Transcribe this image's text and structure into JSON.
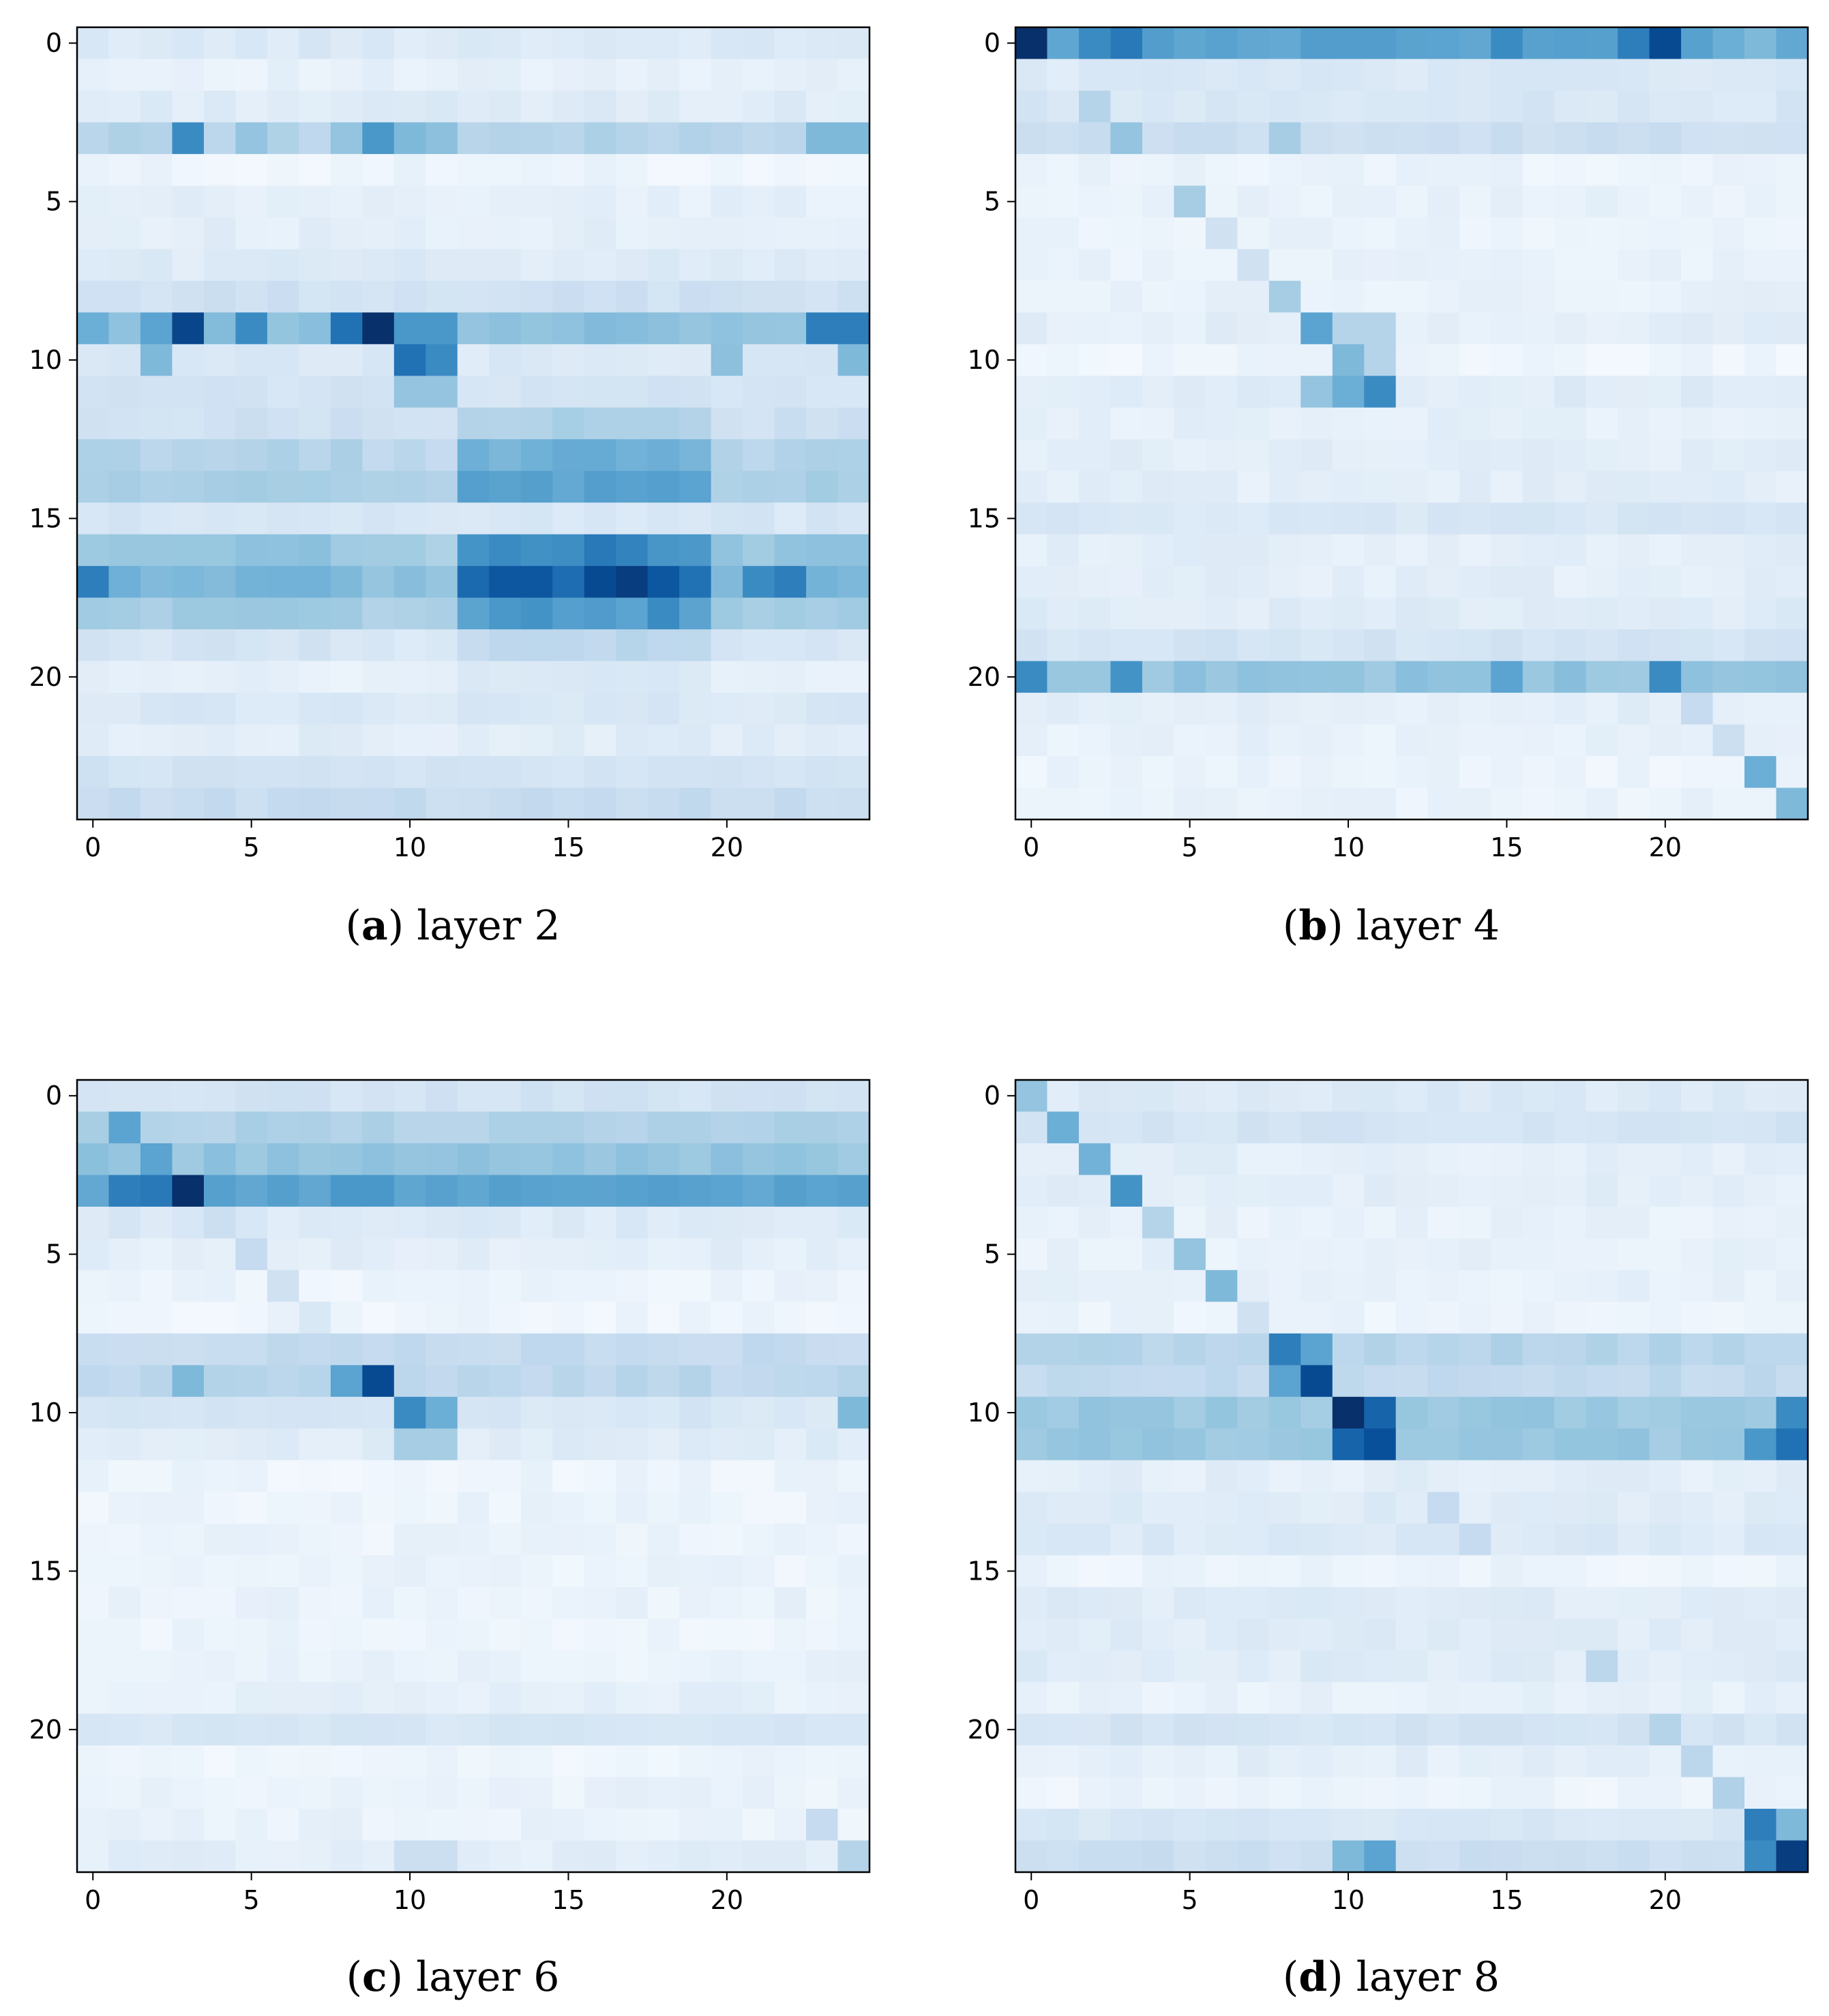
{
  "colormap": {
    "name": "Blues",
    "light": "#f7fbff",
    "dark": "#08306b"
  },
  "chart_data": [
    {
      "type": "heatmap",
      "caption": {
        "open": "(",
        "letter": "a",
        "close": ")",
        "text": " layer 2"
      },
      "xticks": [
        "0",
        "5",
        "10",
        "15",
        "20"
      ],
      "yticks": [
        "0",
        "5",
        "10",
        "15",
        "20"
      ],
      "rows": 25,
      "cols": 25,
      "row_base": [
        0.14,
        0.08,
        0.12,
        0.3,
        0.05,
        0.09,
        0.1,
        0.13,
        0.2,
        0.42,
        0.14,
        0.18,
        0.24,
        0.36,
        0.4,
        0.16,
        0.46,
        0.55,
        0.42,
        0.2,
        0.1,
        0.15,
        0.11,
        0.18,
        0.24
      ],
      "row_flags": [
        "c",
        "x",
        "x",
        "x",
        "c",
        "c",
        "c",
        "c",
        "x",
        "x",
        "x",
        "x",
        "b",
        "b",
        "b",
        "c",
        "b",
        "b",
        "b",
        "b",
        "b",
        "c",
        "c",
        "c",
        "x"
      ],
      "overrides": [
        [
          3,
          3,
          0.65
        ],
        [
          3,
          9,
          0.6
        ],
        [
          3,
          5,
          0.4
        ],
        [
          3,
          8,
          0.4
        ],
        [
          3,
          10,
          0.45
        ],
        [
          3,
          11,
          0.42
        ],
        [
          3,
          23,
          0.45
        ],
        [
          3,
          24,
          0.45
        ],
        [
          9,
          3,
          0.92
        ],
        [
          9,
          9,
          1.0
        ],
        [
          9,
          8,
          0.75
        ],
        [
          9,
          5,
          0.65
        ],
        [
          9,
          2,
          0.55
        ],
        [
          9,
          0,
          0.5
        ],
        [
          9,
          10,
          0.6
        ],
        [
          9,
          11,
          0.6
        ],
        [
          9,
          23,
          0.7
        ],
        [
          9,
          24,
          0.7
        ],
        [
          10,
          10,
          0.75
        ],
        [
          10,
          11,
          0.65
        ],
        [
          10,
          2,
          0.45
        ],
        [
          10,
          20,
          0.42
        ],
        [
          10,
          24,
          0.45
        ],
        [
          11,
          10,
          0.4
        ],
        [
          11,
          11,
          0.4
        ],
        [
          16,
          13,
          0.65
        ],
        [
          16,
          16,
          0.72
        ],
        [
          16,
          17,
          0.68
        ],
        [
          17,
          0,
          0.7
        ],
        [
          17,
          12,
          0.78
        ],
        [
          17,
          13,
          0.85
        ],
        [
          17,
          14,
          0.85
        ],
        [
          17,
          16,
          0.9
        ],
        [
          17,
          17,
          0.95
        ],
        [
          17,
          18,
          0.85
        ],
        [
          17,
          19,
          0.75
        ],
        [
          17,
          21,
          0.65
        ],
        [
          17,
          22,
          0.7
        ],
        [
          18,
          13,
          0.6
        ],
        [
          18,
          14,
          0.62
        ],
        [
          18,
          18,
          0.65
        ]
      ]
    },
    {
      "type": "heatmap",
      "caption": {
        "open": "(",
        "letter": "b",
        "close": ")",
        "text": " layer 4"
      },
      "xticks": [
        "0",
        "5",
        "10",
        "15",
        "20"
      ],
      "yticks": [
        "0",
        "5",
        "10",
        "15",
        "20"
      ],
      "rows": 25,
      "cols": 25,
      "row_base": [
        0.55,
        0.14,
        0.16,
        0.22,
        0.06,
        0.08,
        0.07,
        0.07,
        0.08,
        0.1,
        0.05,
        0.12,
        0.09,
        0.1,
        0.1,
        0.16,
        0.1,
        0.1,
        0.12,
        0.18,
        0.4,
        0.1,
        0.08,
        0.06,
        0.07
      ],
      "row_flags": [
        "x",
        "c",
        "c",
        "x",
        "c",
        "c",
        "c",
        "c",
        "c",
        "c",
        "c",
        "c",
        "c",
        "c",
        "c",
        "c",
        "c",
        "c",
        "c",
        "c",
        "x",
        "c",
        "c",
        "c",
        "c"
      ],
      "overrides": [
        [
          0,
          0,
          1.0
        ],
        [
          0,
          2,
          0.65
        ],
        [
          0,
          3,
          0.72
        ],
        [
          0,
          15,
          0.65
        ],
        [
          0,
          19,
          0.7
        ],
        [
          0,
          20,
          0.9
        ],
        [
          0,
          22,
          0.5
        ],
        [
          0,
          23,
          0.45
        ],
        [
          2,
          2,
          0.3
        ],
        [
          3,
          3,
          0.4
        ],
        [
          3,
          8,
          0.35
        ],
        [
          5,
          5,
          0.35
        ],
        [
          6,
          6,
          0.2
        ],
        [
          7,
          7,
          0.2
        ],
        [
          8,
          8,
          0.35
        ],
        [
          9,
          9,
          0.55
        ],
        [
          9,
          10,
          0.3
        ],
        [
          9,
          11,
          0.3
        ],
        [
          10,
          10,
          0.45
        ],
        [
          10,
          11,
          0.3
        ],
        [
          11,
          10,
          0.5
        ],
        [
          11,
          11,
          0.65
        ],
        [
          11,
          9,
          0.4
        ],
        [
          20,
          0,
          0.65
        ],
        [
          20,
          3,
          0.62
        ],
        [
          20,
          20,
          0.65
        ],
        [
          20,
          15,
          0.55
        ],
        [
          21,
          21,
          0.25
        ],
        [
          22,
          22,
          0.22
        ],
        [
          23,
          23,
          0.5
        ],
        [
          24,
          24,
          0.45
        ]
      ]
    },
    {
      "type": "heatmap",
      "caption": {
        "open": "(",
        "letter": "c",
        "close": ")",
        "text": " layer 6"
      },
      "xticks": [
        "0",
        "5",
        "10",
        "15",
        "20"
      ],
      "yticks": [
        "0",
        "5",
        "10",
        "15",
        "20"
      ],
      "rows": 25,
      "cols": 25,
      "row_base": [
        0.18,
        0.32,
        0.4,
        0.55,
        0.14,
        0.1,
        0.06,
        0.05,
        0.25,
        0.28,
        0.16,
        0.12,
        0.05,
        0.06,
        0.06,
        0.06,
        0.07,
        0.06,
        0.07,
        0.09,
        0.16,
        0.05,
        0.07,
        0.07,
        0.1
      ],
      "row_flags": [
        "x",
        "x",
        "x",
        "x",
        "c",
        "c",
        "c",
        "c",
        "x",
        "x",
        "x",
        "x",
        "c",
        "c",
        "c",
        "c",
        "c",
        "c",
        "c",
        "c",
        "c",
        "c",
        "c",
        "c",
        "c"
      ],
      "overrides": [
        [
          1,
          1,
          0.55
        ],
        [
          2,
          2,
          0.55
        ],
        [
          3,
          3,
          1.0
        ],
        [
          3,
          1,
          0.7
        ],
        [
          3,
          2,
          0.72
        ],
        [
          3,
          8,
          0.6
        ],
        [
          3,
          9,
          0.6
        ],
        [
          3,
          20,
          0.55
        ],
        [
          9,
          9,
          0.9
        ],
        [
          9,
          8,
          0.55
        ],
        [
          9,
          3,
          0.45
        ],
        [
          10,
          10,
          0.65
        ],
        [
          10,
          11,
          0.5
        ],
        [
          10,
          24,
          0.45
        ],
        [
          11,
          10,
          0.35
        ],
        [
          11,
          11,
          0.35
        ],
        [
          4,
          4,
          0.22
        ],
        [
          5,
          5,
          0.25
        ],
        [
          6,
          6,
          0.2
        ],
        [
          7,
          7,
          0.15
        ],
        [
          23,
          23,
          0.25
        ],
        [
          24,
          24,
          0.3
        ],
        [
          24,
          10,
          0.22
        ],
        [
          24,
          11,
          0.22
        ]
      ]
    },
    {
      "type": "heatmap",
      "caption": {
        "open": "(",
        "letter": "d",
        "close": ")",
        "text": " layer 8"
      },
      "xticks": [
        "0",
        "5",
        "10",
        "15",
        "20"
      ],
      "yticks": [
        "0",
        "5",
        "10",
        "15",
        "20"
      ],
      "rows": 25,
      "cols": 25,
      "row_base": [
        0.14,
        0.18,
        0.1,
        0.1,
        0.08,
        0.08,
        0.08,
        0.06,
        0.3,
        0.26,
        0.38,
        0.38,
        0.1,
        0.12,
        0.14,
        0.06,
        0.12,
        0.12,
        0.12,
        0.08,
        0.18,
        0.1,
        0.06,
        0.16,
        0.22
      ],
      "row_flags": [
        "x",
        "x",
        "x",
        "x",
        "c",
        "c",
        "c",
        "c",
        "x",
        "x",
        "x",
        "x",
        "c",
        "c",
        "c",
        "c",
        "c",
        "c",
        "c",
        "c",
        "c",
        "c",
        "c",
        "c",
        "c"
      ],
      "overrides": [
        [
          0,
          0,
          0.4
        ],
        [
          1,
          1,
          0.5
        ],
        [
          2,
          2,
          0.48
        ],
        [
          3,
          3,
          0.62
        ],
        [
          4,
          4,
          0.3
        ],
        [
          5,
          5,
          0.4
        ],
        [
          6,
          6,
          0.45
        ],
        [
          7,
          7,
          0.2
        ],
        [
          8,
          8,
          0.7
        ],
        [
          8,
          9,
          0.55
        ],
        [
          9,
          9,
          0.9
        ],
        [
          9,
          8,
          0.55
        ],
        [
          10,
          10,
          1.0
        ],
        [
          10,
          11,
          0.8
        ],
        [
          10,
          24,
          0.65
        ],
        [
          11,
          10,
          0.8
        ],
        [
          11,
          11,
          0.88
        ],
        [
          11,
          23,
          0.6
        ],
        [
          11,
          24,
          0.75
        ],
        [
          13,
          13,
          0.25
        ],
        [
          14,
          14,
          0.25
        ],
        [
          18,
          18,
          0.28
        ],
        [
          20,
          20,
          0.3
        ],
        [
          21,
          21,
          0.28
        ],
        [
          22,
          22,
          0.32
        ],
        [
          23,
          23,
          0.7
        ],
        [
          23,
          24,
          0.45
        ],
        [
          24,
          24,
          0.95
        ],
        [
          24,
          23,
          0.65
        ],
        [
          24,
          10,
          0.45
        ],
        [
          24,
          11,
          0.55
        ]
      ]
    }
  ]
}
